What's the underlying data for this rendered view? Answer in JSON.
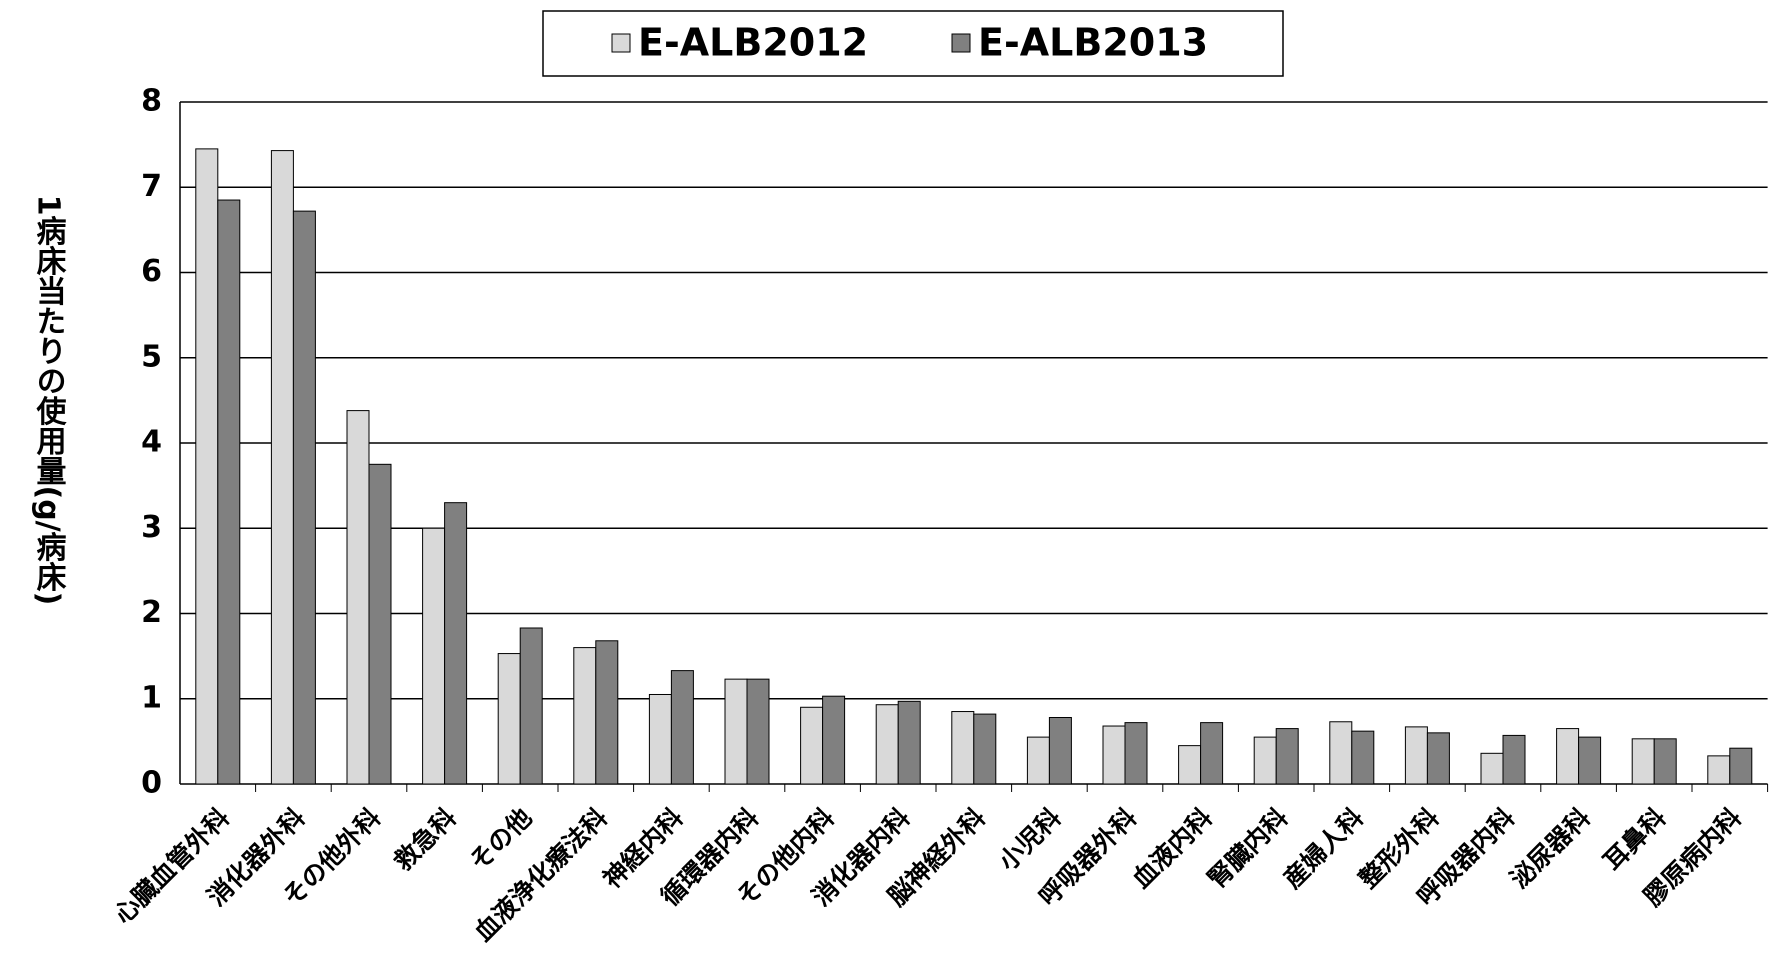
{
  "chart_data": {
    "type": "bar",
    "y_label": "1病床当たりの使用量(g/病床)",
    "categories": [
      "心臓血管外科",
      "消化器外科",
      "その他外科",
      "救急科",
      "その他",
      "血液浄化療法科",
      "神経内科",
      "循環器内科",
      "その他内科",
      "消化器内科",
      "脳神経外科",
      "小児科",
      "呼吸器外科",
      "血液内科",
      "腎臓内科",
      "産婦人科",
      "整形外科",
      "呼吸器内科",
      "泌尿器科",
      "耳鼻科",
      "膠原病内科"
    ],
    "series": [
      {
        "name": "E-ALB2012",
        "color": "#d9d9d9",
        "values": [
          7.45,
          7.43,
          4.38,
          3.0,
          1.53,
          1.6,
          1.05,
          1.23,
          0.9,
          0.93,
          0.85,
          0.55,
          0.68,
          0.45,
          0.55,
          0.73,
          0.67,
          0.36,
          0.65,
          0.53,
          0.33
        ]
      },
      {
        "name": "E-ALB2013",
        "color": "#808080",
        "values": [
          6.85,
          6.72,
          3.75,
          3.3,
          1.83,
          1.68,
          1.33,
          1.23,
          1.03,
          0.97,
          0.82,
          0.78,
          0.72,
          0.72,
          0.65,
          0.62,
          0.6,
          0.57,
          0.55,
          0.53,
          0.42
        ]
      }
    ],
    "ylim": [
      0,
      8
    ],
    "yticks": [
      0,
      1,
      2,
      3,
      4,
      5,
      6,
      7,
      8
    ],
    "grid": true,
    "legend": "top"
  }
}
